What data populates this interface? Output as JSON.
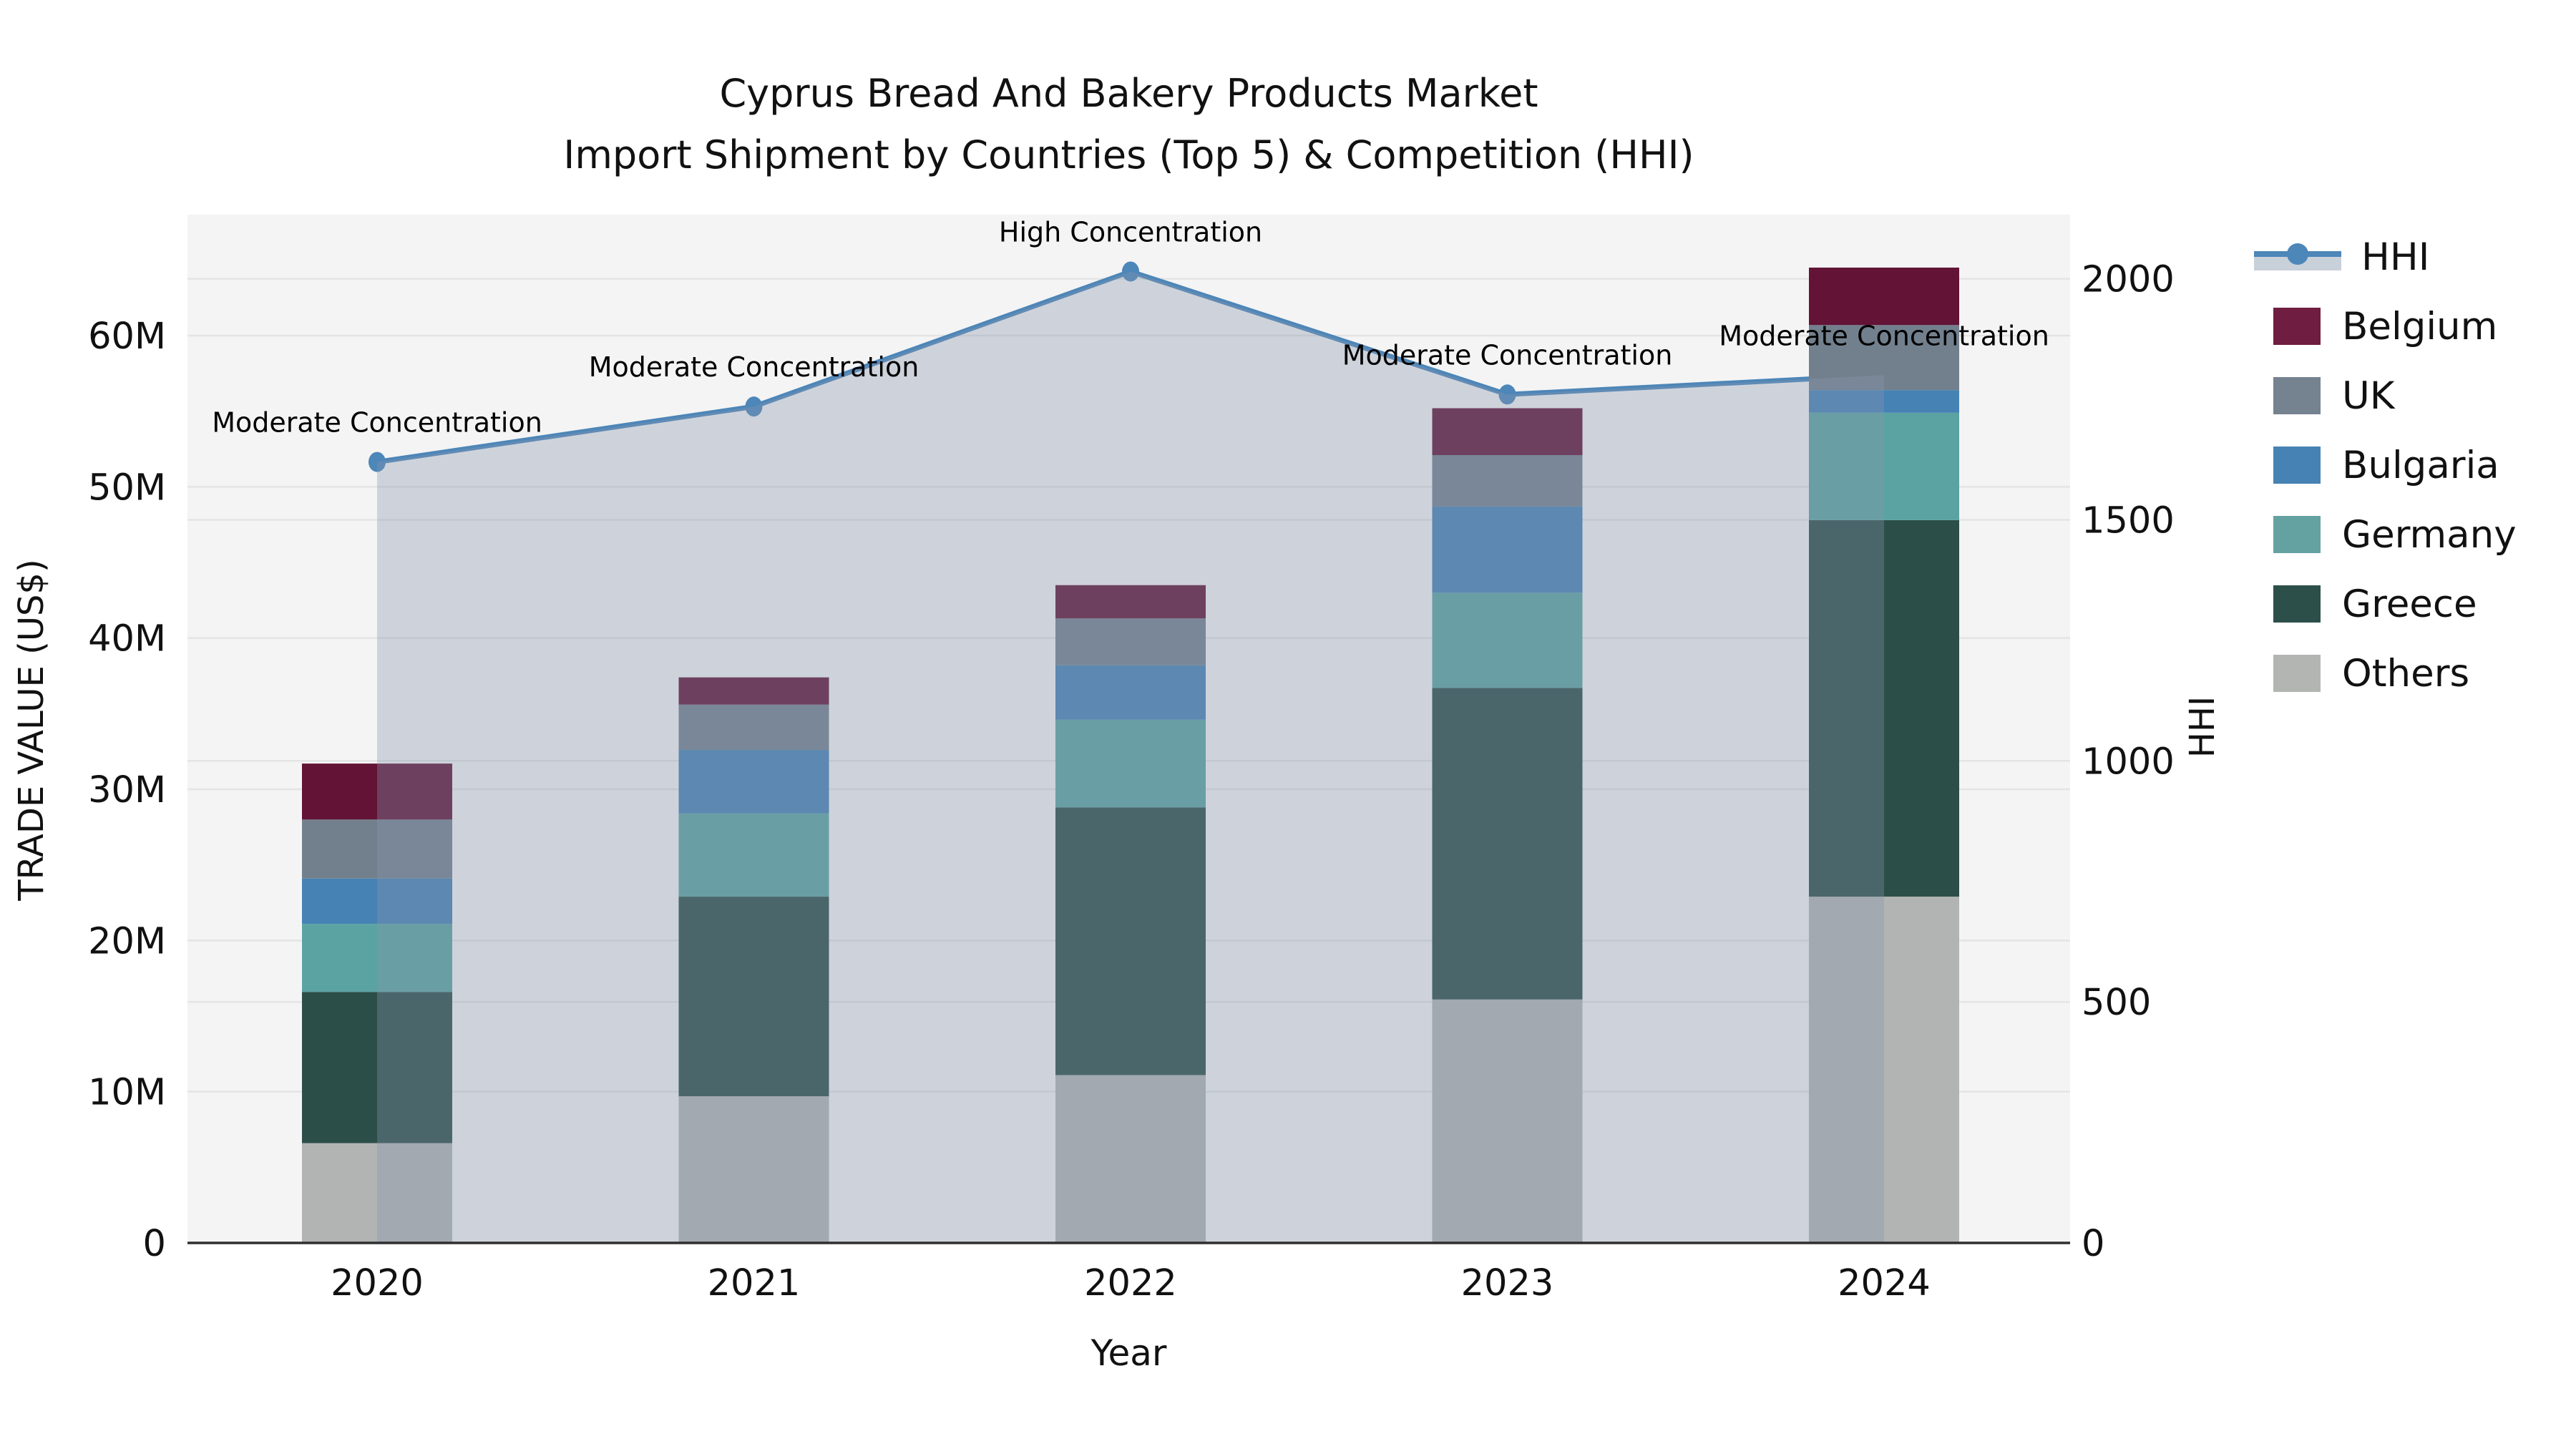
{
  "title": {
    "line1": "Cyprus Bread And Bakery Products Market",
    "line2": "Import Shipment by Countries (Top 5) & Competition (HHI)"
  },
  "axes": {
    "y_left": {
      "label": "TRADE VALUE (US$)",
      "ticks": [
        "0",
        "10M",
        "20M",
        "30M",
        "40M",
        "50M",
        "60M"
      ],
      "tick_values": [
        0,
        10,
        20,
        30,
        40,
        50,
        60
      ],
      "lim": [
        0,
        68
      ]
    },
    "y_right": {
      "label": "HHI",
      "ticks": [
        "0",
        "500",
        "1000",
        "1500",
        "2000"
      ],
      "tick_values": [
        0,
        500,
        1000,
        1500,
        2000
      ],
      "lim": [
        0,
        2133
      ]
    },
    "x": {
      "label": "Year"
    }
  },
  "chart_data": {
    "type": "bar",
    "subtype": "stacked-bars-with-line",
    "categories": [
      "2020",
      "2021",
      "2022",
      "2023",
      "2024"
    ],
    "value_unit": "millions USD",
    "series": [
      {
        "name": "Others",
        "color": "#b1b4b3",
        "values": [
          6.6,
          9.7,
          11.1,
          16.1,
          22.9
        ]
      },
      {
        "name": "Greece",
        "color": "#2c4e49",
        "values": [
          10.0,
          13.2,
          17.7,
          20.6,
          24.9
        ]
      },
      {
        "name": "Germany",
        "color": "#5ba3a2",
        "values": [
          4.5,
          5.5,
          5.8,
          6.3,
          7.1
        ]
      },
      {
        "name": "Bulgaria",
        "color": "#4682b4",
        "values": [
          3.0,
          4.2,
          3.6,
          5.7,
          1.5
        ]
      },
      {
        "name": "UK",
        "color": "#72808e",
        "values": [
          3.9,
          3.0,
          3.1,
          3.4,
          4.3
        ]
      },
      {
        "name": "Belgium",
        "color": "#621336",
        "values": [
          3.7,
          1.8,
          2.2,
          3.1,
          3.8
        ]
      }
    ],
    "totals": [
      31.7,
      37.4,
      43.5,
      55.2,
      64.5
    ],
    "line_series": {
      "name": "HHI",
      "color": "#4d86b8",
      "area_color": "#8696ad",
      "area_opacity": 0.35,
      "values": [
        1620,
        1735,
        2015,
        1760,
        1800
      ],
      "annotations": [
        "Moderate Concentration",
        "Moderate Concentration",
        "High Concentration",
        "Moderate Concentration",
        "Moderate Concentration"
      ]
    },
    "grid": true,
    "legend_position": "right"
  },
  "legend": {
    "entries": [
      {
        "label": "HHI",
        "type": "line",
        "color": "#4d86b8"
      },
      {
        "label": "Belgium",
        "type": "patch",
        "color": "#6f1d40"
      },
      {
        "label": "UK",
        "type": "patch",
        "color": "#75828f"
      },
      {
        "label": "Bulgaria",
        "type": "patch",
        "color": "#4682b4"
      },
      {
        "label": "Germany",
        "type": "patch",
        "color": "#64a2a1"
      },
      {
        "label": "Greece",
        "type": "patch",
        "color": "#2d4f4a"
      },
      {
        "label": "Others",
        "type": "patch",
        "color": "#b2b5b2"
      }
    ]
  },
  "colors": {
    "plot_background": "#f4f4f4",
    "gridline": "#e4e4e4",
    "baseline": "#2f2f2f",
    "text": "#111111",
    "annotation_text": "#000000"
  }
}
